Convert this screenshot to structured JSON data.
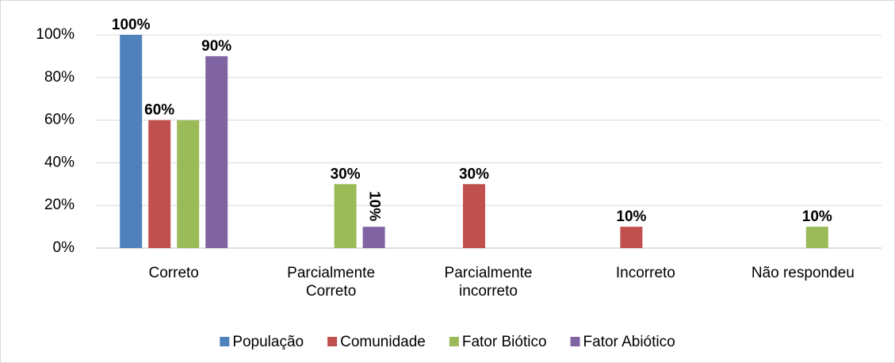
{
  "chart_data": {
    "type": "bar",
    "categories": [
      "Correto",
      "Parcialmente Correto",
      "Parcialmente incorreto",
      "Incorreto",
      "Não respondeu"
    ],
    "series": [
      {
        "name": "População",
        "color": "#4f81bd",
        "values": [
          100,
          null,
          null,
          null,
          null
        ],
        "value_labels": [
          "100%",
          null,
          null,
          null,
          null
        ]
      },
      {
        "name": "Comunidade",
        "color": "#c0504d",
        "values": [
          60,
          null,
          30,
          10,
          null
        ],
        "value_labels": [
          "60%",
          null,
          "30%",
          "10%",
          null
        ]
      },
      {
        "name": "Fator Biótico",
        "color": "#9bbb59",
        "values": [
          60,
          30,
          null,
          null,
          10
        ],
        "value_labels": [
          null,
          "30%",
          null,
          null,
          "10%"
        ]
      },
      {
        "name": "Fator Abiótico",
        "color": "#8064a2",
        "values": [
          90,
          10,
          null,
          null,
          null
        ],
        "value_labels": [
          "90%",
          "10%",
          null,
          null,
          null
        ]
      }
    ],
    "ylim": [
      0,
      100
    ],
    "yticks": [
      {
        "value": 0,
        "label": "0%"
      },
      {
        "value": 20,
        "label": "20%"
      },
      {
        "value": 40,
        "label": "40%"
      },
      {
        "value": 60,
        "label": "60%"
      },
      {
        "value": 80,
        "label": "80%"
      },
      {
        "value": 100,
        "label": "100%"
      }
    ],
    "grid": true,
    "legend": "bottom"
  }
}
